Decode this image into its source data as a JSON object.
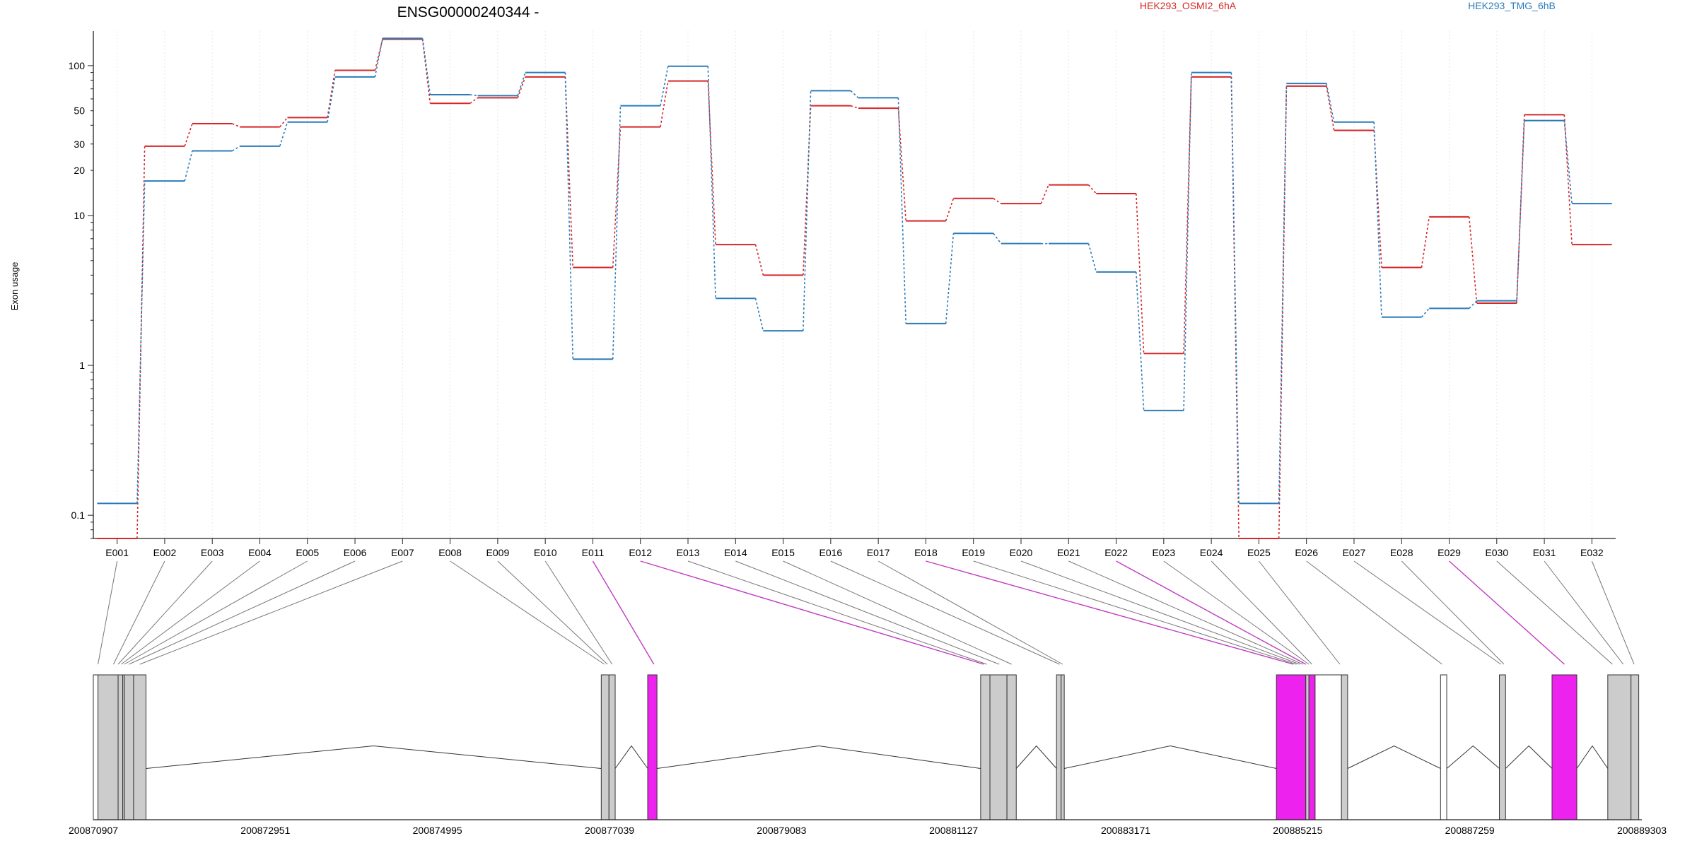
{
  "title": "ENSG00000240344 -",
  "ylabel": "Exon usage",
  "legend": [
    {
      "name": "HEK293_OSMI2_6hA",
      "color": "#d62728"
    },
    {
      "name": "HEK293_TMG_6hB",
      "color": "#2b7bba"
    }
  ],
  "colors": {
    "gray_exon": "#cccccc",
    "highlight_exon": "#ee22ee",
    "highlight_line": "#c03cc0",
    "connector": "#777777",
    "grid": "#e6e6ea",
    "axis": "#222222"
  },
  "chart_data": {
    "type": "line",
    "yscale": "log",
    "ylim": [
      0.07,
      170
    ],
    "yticks": [
      0.1,
      1,
      10,
      20,
      30,
      50,
      100
    ],
    "yticklabels": [
      "0.1",
      "1",
      "10",
      "20",
      "30",
      "50",
      "100"
    ],
    "categories": [
      "E001",
      "E002",
      "E003",
      "E004",
      "E005",
      "E006",
      "E007",
      "E008",
      "E009",
      "E010",
      "E011",
      "E012",
      "E013",
      "E014",
      "E015",
      "E016",
      "E017",
      "E018",
      "E019",
      "E020",
      "E021",
      "E022",
      "E023",
      "E024",
      "E025",
      "E026",
      "E027",
      "E028",
      "E029",
      "E030",
      "E031",
      "E032"
    ],
    "series": [
      {
        "name": "HEK293_OSMI2_6hA",
        "color": "#d62728",
        "values": [
          0.07,
          29,
          41,
          39,
          45,
          93,
          150,
          56,
          61,
          84,
          4.5,
          39,
          79,
          6.4,
          4.0,
          54,
          52,
          9.2,
          13,
          12,
          16,
          14,
          1.2,
          84,
          0.07,
          73,
          37,
          4.5,
          9.8,
          2.6,
          47,
          6.4
        ]
      },
      {
        "name": "HEK293_TMG_6hB",
        "color": "#2b7bba",
        "values": [
          0.12,
          17,
          27,
          29,
          42,
          84,
          152,
          64,
          63,
          90,
          1.1,
          54,
          99,
          2.8,
          1.7,
          68,
          61,
          1.9,
          7.6,
          6.5,
          6.5,
          4.2,
          0.5,
          90,
          0.12,
          76,
          42,
          2.1,
          2.4,
          2.7,
          43,
          12
        ]
      }
    ]
  },
  "gene_model": {
    "ticks": [
      "200870907",
      "200872951",
      "200874995",
      "200877039",
      "200879083",
      "200881127",
      "200883171",
      "200885215",
      "200887259",
      "200889303"
    ],
    "exon_links": [
      {
        "exon": "E001",
        "target": 0.003,
        "hl": false
      },
      {
        "exon": "E002",
        "target": 0.013,
        "hl": false
      },
      {
        "exon": "E003",
        "target": 0.016,
        "hl": false
      },
      {
        "exon": "E004",
        "target": 0.018,
        "hl": false
      },
      {
        "exon": "E005",
        "target": 0.02,
        "hl": false
      },
      {
        "exon": "E006",
        "target": 0.023,
        "hl": false
      },
      {
        "exon": "E007",
        "target": 0.03,
        "hl": false
      },
      {
        "exon": "E008",
        "target": 0.33,
        "hl": false
      },
      {
        "exon": "E009",
        "target": 0.332,
        "hl": false
      },
      {
        "exon": "E010",
        "target": 0.335,
        "hl": false
      },
      {
        "exon": "E011",
        "target": 0.362,
        "hl": true
      },
      {
        "exon": "E012",
        "target": 0.575,
        "hl": true
      },
      {
        "exon": "E013",
        "target": 0.577,
        "hl": false
      },
      {
        "exon": "E014",
        "target": 0.585,
        "hl": false
      },
      {
        "exon": "E015",
        "target": 0.593,
        "hl": false
      },
      {
        "exon": "E016",
        "target": 0.624,
        "hl": false
      },
      {
        "exon": "E017",
        "target": 0.626,
        "hl": false
      },
      {
        "exon": "E018",
        "target": 0.775,
        "hl": true
      },
      {
        "exon": "E019",
        "target": 0.777,
        "hl": false
      },
      {
        "exon": "E020",
        "target": 0.779,
        "hl": false
      },
      {
        "exon": "E021",
        "target": 0.781,
        "hl": false
      },
      {
        "exon": "E022",
        "target": 0.783,
        "hl": true
      },
      {
        "exon": "E023",
        "target": 0.785,
        "hl": false
      },
      {
        "exon": "E024",
        "target": 0.787,
        "hl": false
      },
      {
        "exon": "E025",
        "target": 0.805,
        "hl": false
      },
      {
        "exon": "E026",
        "target": 0.871,
        "hl": false
      },
      {
        "exon": "E027",
        "target": 0.909,
        "hl": false
      },
      {
        "exon": "E028",
        "target": 0.911,
        "hl": false
      },
      {
        "exon": "E029",
        "target": 0.95,
        "hl": true
      },
      {
        "exon": "E030",
        "target": 0.981,
        "hl": false
      },
      {
        "exon": "E031",
        "target": 0.988,
        "hl": false
      },
      {
        "exon": "E032",
        "target": 0.995,
        "hl": false
      }
    ],
    "exons": [
      {
        "s": 0.0,
        "e": 0.003,
        "fill": "white"
      },
      {
        "s": 0.003,
        "e": 0.016,
        "fill": "gray"
      },
      {
        "s": 0.016,
        "e": 0.019,
        "fill": "gray"
      },
      {
        "s": 0.019,
        "e": 0.02,
        "fill": "gray"
      },
      {
        "s": 0.02,
        "e": 0.026,
        "fill": "gray"
      },
      {
        "s": 0.026,
        "e": 0.034,
        "fill": "gray"
      },
      {
        "s": 0.328,
        "e": 0.333,
        "fill": "gray"
      },
      {
        "s": 0.333,
        "e": 0.337,
        "fill": "gray"
      },
      {
        "s": 0.358,
        "e": 0.364,
        "fill": "magenta"
      },
      {
        "s": 0.573,
        "e": 0.579,
        "fill": "gray"
      },
      {
        "s": 0.579,
        "e": 0.59,
        "fill": "gray"
      },
      {
        "s": 0.59,
        "e": 0.596,
        "fill": "gray"
      },
      {
        "s": 0.622,
        "e": 0.625,
        "fill": "gray"
      },
      {
        "s": 0.625,
        "e": 0.627,
        "fill": "gray"
      },
      {
        "s": 0.764,
        "e": 0.783,
        "fill": "magenta"
      },
      {
        "s": 0.783,
        "e": 0.785,
        "fill": "gray"
      },
      {
        "s": 0.785,
        "e": 0.789,
        "fill": "magenta"
      },
      {
        "s": 0.789,
        "e": 0.806,
        "fill": "white"
      },
      {
        "s": 0.806,
        "e": 0.81,
        "fill": "gray"
      },
      {
        "s": 0.87,
        "e": 0.874,
        "fill": "white"
      },
      {
        "s": 0.908,
        "e": 0.912,
        "fill": "gray"
      },
      {
        "s": 0.942,
        "e": 0.958,
        "fill": "magenta"
      },
      {
        "s": 0.978,
        "e": 0.993,
        "fill": "gray"
      },
      {
        "s": 0.993,
        "e": 0.998,
        "fill": "gray"
      }
    ]
  }
}
